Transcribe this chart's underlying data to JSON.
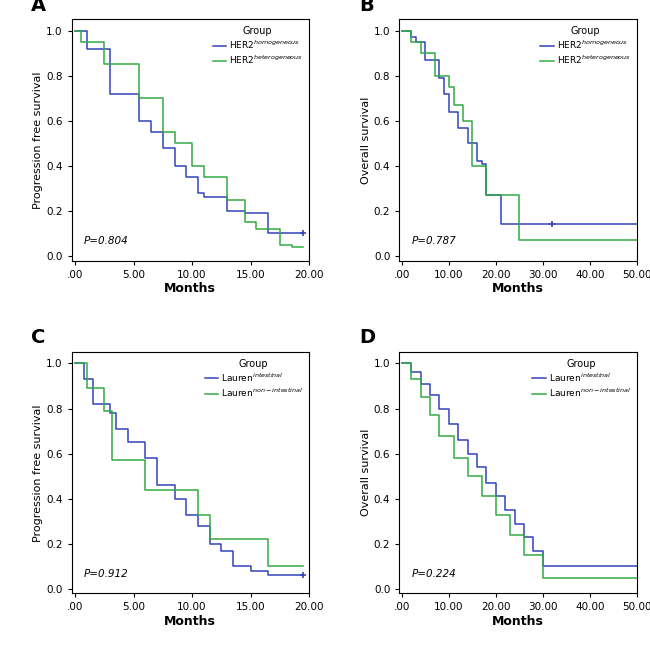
{
  "panel_A": {
    "title": "A",
    "xlabel": "Months",
    "ylabel": "Progression free survival",
    "pvalue": "P=0.804",
    "xlim": [
      -0.3,
      20
    ],
    "ylim": [
      -0.02,
      1.05
    ],
    "xticks": [
      0,
      5.0,
      10.0,
      15.0,
      20.0
    ],
    "xtick_labels": [
      ".00",
      "5.00",
      "10.00",
      "15.00",
      "20.00"
    ],
    "yticks": [
      0.0,
      0.2,
      0.4,
      0.6,
      0.8,
      1.0
    ],
    "ytick_labels": [
      "0.0",
      "0.2",
      "0.4",
      "0.6",
      "0.8",
      "1.0"
    ],
    "legend_title": "Group",
    "legend_labels": [
      "HER2$^{homogeneous}$",
      "HER2$^{heterogeneous}$"
    ],
    "line1_color": "#3344bb",
    "line2_color": "#33aa44",
    "line1_x": [
      0,
      1.0,
      1.0,
      3.0,
      3.0,
      5.5,
      5.5,
      6.5,
      6.5,
      7.5,
      7.5,
      8.5,
      8.5,
      9.5,
      9.5,
      10.5,
      10.5,
      11.0,
      11.0,
      13.0,
      13.0,
      14.5,
      14.5,
      16.5,
      16.5,
      17.5,
      17.5,
      19.5
    ],
    "line1_y": [
      1.0,
      1.0,
      0.92,
      0.92,
      0.72,
      0.72,
      0.6,
      0.6,
      0.55,
      0.55,
      0.48,
      0.48,
      0.4,
      0.4,
      0.35,
      0.35,
      0.28,
      0.28,
      0.26,
      0.26,
      0.2,
      0.2,
      0.19,
      0.19,
      0.1,
      0.1,
      0.1,
      0.1
    ],
    "line2_x": [
      0,
      0.5,
      0.5,
      2.5,
      2.5,
      3.5,
      3.5,
      5.5,
      5.5,
      7.5,
      7.5,
      8.5,
      8.5,
      10.0,
      10.0,
      11.0,
      11.0,
      13.0,
      13.0,
      14.5,
      14.5,
      15.5,
      15.5,
      17.5,
      17.5,
      18.5,
      18.5,
      19.5
    ],
    "line2_y": [
      1.0,
      1.0,
      0.95,
      0.95,
      0.85,
      0.85,
      0.85,
      0.85,
      0.7,
      0.7,
      0.55,
      0.55,
      0.5,
      0.5,
      0.4,
      0.4,
      0.35,
      0.35,
      0.25,
      0.25,
      0.15,
      0.15,
      0.12,
      0.12,
      0.05,
      0.05,
      0.04,
      0.04
    ],
    "censor1_x": [
      19.5
    ],
    "censor1_y": [
      0.1
    ],
    "censor2_x": [],
    "censor2_y": []
  },
  "panel_B": {
    "title": "B",
    "xlabel": "Months",
    "ylabel": "Overall survival",
    "pvalue": "P=0.787",
    "xlim": [
      -0.5,
      50
    ],
    "ylim": [
      -0.02,
      1.05
    ],
    "xticks": [
      0,
      10.0,
      20.0,
      30.0,
      40.0,
      50.0
    ],
    "xtick_labels": [
      ".00",
      "10.00",
      "20.00",
      "30.00",
      "40.00",
      "50.00"
    ],
    "yticks": [
      0.0,
      0.2,
      0.4,
      0.6,
      0.8,
      1.0
    ],
    "ytick_labels": [
      "0.0",
      "0.2",
      "0.4",
      "0.6",
      "0.8",
      "1.0"
    ],
    "legend_title": "Group",
    "legend_labels": [
      "HER2$^{homogeneous}$",
      "HER2$^{heterogeneous}$"
    ],
    "line1_color": "#3344bb",
    "line2_color": "#33aa44",
    "line1_x": [
      0,
      2,
      2,
      3,
      3,
      5,
      5,
      8,
      8,
      9,
      9,
      10,
      10,
      12,
      12,
      14,
      14,
      16,
      16,
      17,
      17,
      18,
      18,
      20,
      20,
      21,
      21,
      25,
      25,
      26,
      26,
      32,
      32,
      50
    ],
    "line1_y": [
      1.0,
      1.0,
      0.97,
      0.97,
      0.95,
      0.95,
      0.87,
      0.87,
      0.79,
      0.79,
      0.72,
      0.72,
      0.64,
      0.64,
      0.57,
      0.57,
      0.5,
      0.5,
      0.42,
      0.42,
      0.41,
      0.41,
      0.27,
      0.27,
      0.27,
      0.27,
      0.14,
      0.14,
      0.14,
      0.14,
      0.14,
      0.14,
      0.14,
      0.14
    ],
    "line2_x": [
      0,
      2,
      2,
      4,
      4,
      7,
      7,
      10,
      10,
      11,
      11,
      13,
      13,
      15,
      15,
      18,
      18,
      22,
      22,
      25,
      25,
      30,
      30,
      45,
      45,
      50
    ],
    "line2_y": [
      1.0,
      1.0,
      0.95,
      0.95,
      0.9,
      0.9,
      0.8,
      0.8,
      0.75,
      0.75,
      0.67,
      0.67,
      0.6,
      0.6,
      0.4,
      0.4,
      0.27,
      0.27,
      0.27,
      0.27,
      0.07,
      0.07,
      0.07,
      0.07,
      0.07,
      0.07
    ],
    "censor1_x": [
      32
    ],
    "censor1_y": [
      0.14
    ],
    "censor2_x": [],
    "censor2_y": []
  },
  "panel_C": {
    "title": "C",
    "xlabel": "Months",
    "ylabel": "Progression free survival",
    "pvalue": "P=0.912",
    "xlim": [
      -0.3,
      20
    ],
    "ylim": [
      -0.02,
      1.05
    ],
    "xticks": [
      0,
      5.0,
      10.0,
      15.0,
      20.0
    ],
    "xtick_labels": [
      ".00",
      "5.00",
      "10.00",
      "15.00",
      "20.00"
    ],
    "yticks": [
      0.0,
      0.2,
      0.4,
      0.6,
      0.8,
      1.0
    ],
    "ytick_labels": [
      "0.0",
      "0.2",
      "0.4",
      "0.6",
      "0.8",
      "1.0"
    ],
    "legend_title": "Group",
    "legend_labels": [
      "Lauren$^{intestinal}$",
      "Lauren$^{non-intestinal}$"
    ],
    "line1_color": "#3344bb",
    "line2_color": "#33aa44",
    "line1_x": [
      0,
      0.8,
      0.8,
      1.5,
      1.5,
      3.0,
      3.0,
      3.5,
      3.5,
      4.5,
      4.5,
      6.0,
      6.0,
      7.0,
      7.0,
      8.5,
      8.5,
      9.5,
      9.5,
      10.5,
      10.5,
      11.5,
      11.5,
      12.5,
      12.5,
      13.5,
      13.5,
      15.0,
      15.0,
      16.5,
      16.5,
      18.0,
      18.0,
      19.5
    ],
    "line1_y": [
      1.0,
      1.0,
      0.93,
      0.93,
      0.82,
      0.82,
      0.78,
      0.78,
      0.71,
      0.71,
      0.65,
      0.65,
      0.58,
      0.58,
      0.46,
      0.46,
      0.4,
      0.4,
      0.33,
      0.33,
      0.28,
      0.28,
      0.2,
      0.2,
      0.17,
      0.17,
      0.1,
      0.1,
      0.08,
      0.08,
      0.06,
      0.06,
      0.06,
      0.06
    ],
    "line2_x": [
      0,
      1.0,
      1.0,
      2.5,
      2.5,
      3.2,
      3.2,
      6.0,
      6.0,
      8.0,
      8.0,
      10.5,
      10.5,
      11.5,
      11.5,
      13.5,
      13.5,
      16.5,
      16.5,
      18.0,
      18.0,
      19.5
    ],
    "line2_y": [
      1.0,
      1.0,
      0.89,
      0.89,
      0.79,
      0.79,
      0.57,
      0.57,
      0.44,
      0.44,
      0.44,
      0.44,
      0.33,
      0.33,
      0.22,
      0.22,
      0.22,
      0.22,
      0.1,
      0.1,
      0.1,
      0.1
    ],
    "censor1_x": [
      19.5
    ],
    "censor1_y": [
      0.06
    ],
    "censor2_x": [],
    "censor2_y": []
  },
  "panel_D": {
    "title": "D",
    "xlabel": "Months",
    "ylabel": "Overall survival",
    "pvalue": "P=0.224",
    "xlim": [
      -0.5,
      50
    ],
    "ylim": [
      -0.02,
      1.05
    ],
    "xticks": [
      0,
      10.0,
      20.0,
      30.0,
      40.0,
      50.0
    ],
    "xtick_labels": [
      ".00",
      "10.00",
      "20.00",
      "30.00",
      "40.00",
      "50.00"
    ],
    "yticks": [
      0.0,
      0.2,
      0.4,
      0.6,
      0.8,
      1.0
    ],
    "ytick_labels": [
      "0.0",
      "0.2",
      "0.4",
      "0.6",
      "0.8",
      "1.0"
    ],
    "legend_title": "Group",
    "legend_labels": [
      "Lauren$^{intestinal}$",
      "Lauren$^{non-intestinal}$"
    ],
    "line1_color": "#3344bb",
    "line2_color": "#33aa44",
    "line1_x": [
      0,
      2,
      2,
      4,
      4,
      6,
      6,
      8,
      8,
      10,
      10,
      12,
      12,
      14,
      14,
      16,
      16,
      18,
      18,
      20,
      20,
      22,
      22,
      24,
      24,
      26,
      26,
      28,
      28,
      30,
      30,
      36,
      36,
      44,
      44,
      50
    ],
    "line1_y": [
      1.0,
      1.0,
      0.96,
      0.96,
      0.91,
      0.91,
      0.86,
      0.86,
      0.8,
      0.8,
      0.73,
      0.73,
      0.66,
      0.66,
      0.6,
      0.6,
      0.54,
      0.54,
      0.47,
      0.47,
      0.41,
      0.41,
      0.35,
      0.35,
      0.29,
      0.29,
      0.23,
      0.23,
      0.17,
      0.17,
      0.1,
      0.1,
      0.1,
      0.1,
      0.1,
      0.1
    ],
    "line2_x": [
      0,
      2,
      2,
      4,
      4,
      6,
      6,
      8,
      8,
      11,
      11,
      14,
      14,
      17,
      17,
      20,
      20,
      23,
      23,
      26,
      26,
      30,
      30,
      50
    ],
    "line2_y": [
      1.0,
      1.0,
      0.93,
      0.93,
      0.85,
      0.85,
      0.77,
      0.77,
      0.68,
      0.68,
      0.58,
      0.58,
      0.5,
      0.5,
      0.41,
      0.41,
      0.33,
      0.33,
      0.24,
      0.24,
      0.15,
      0.15,
      0.05,
      0.05
    ],
    "censor1_x": [],
    "censor1_y": [],
    "censor2_x": [],
    "censor2_y": []
  },
  "bg_color": "#ffffff"
}
